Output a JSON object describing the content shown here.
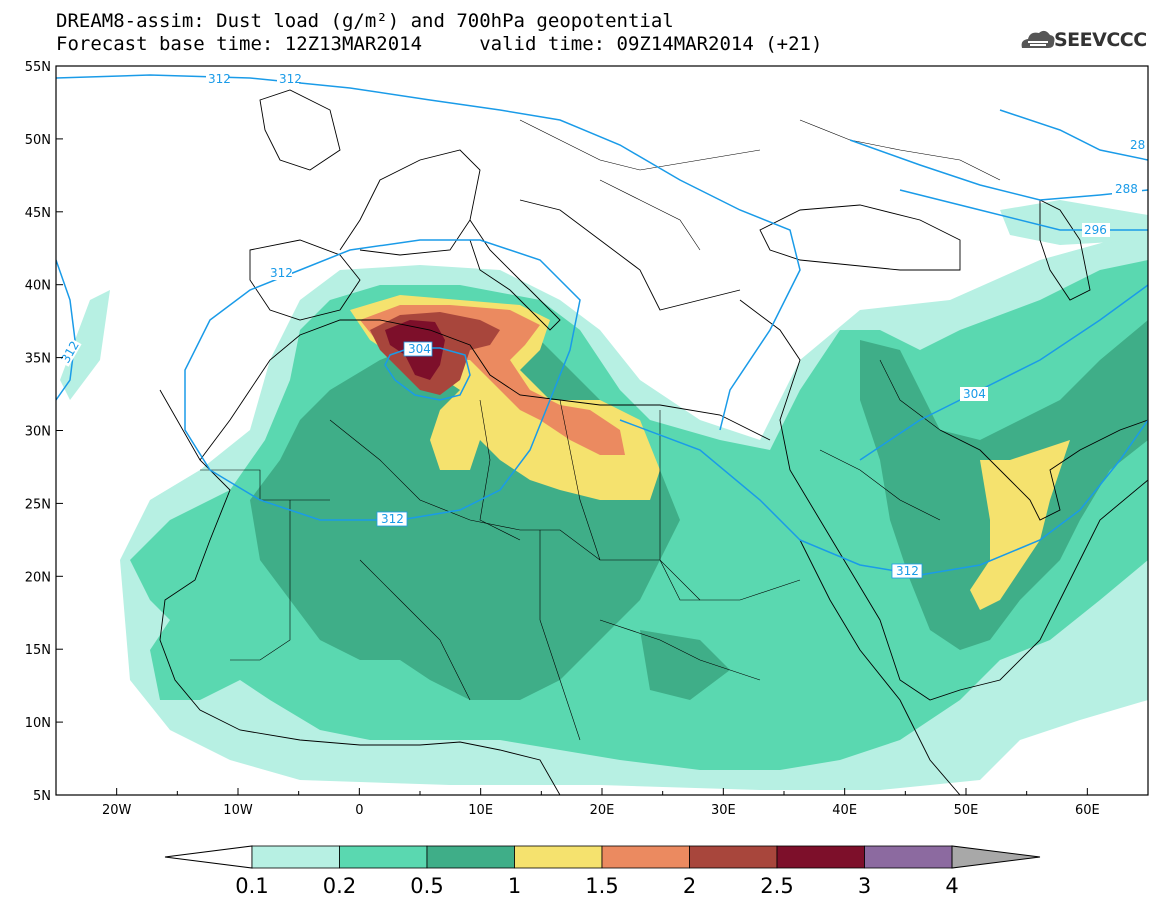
{
  "title": {
    "line1": "DREAM8-assim: Dust load (g/m²) and 700hPa geopotential",
    "line2": "Forecast base time: 12Z13MAR2014     valid time: 09Z14MAR2014 (+21)"
  },
  "logo": {
    "text": "SEEVCCC",
    "icon": "cloud-icon"
  },
  "axes": {
    "lon_ticks": [
      "20W",
      "10W",
      "0",
      "10E",
      "20E",
      "30E",
      "40E",
      "50E",
      "60E"
    ],
    "lat_ticks": [
      "55N",
      "50N",
      "45N",
      "40N",
      "35N",
      "30N",
      "25N",
      "20N",
      "15N",
      "10N",
      "5N"
    ],
    "lon_range": [
      -25,
      65
    ],
    "lat_range": [
      5,
      55
    ]
  },
  "contour_labels": [
    "312",
    "312",
    "312",
    "312",
    "304",
    "312",
    "312",
    "304",
    "288",
    "28",
    "296"
  ],
  "colorbar": {
    "labels": [
      "0.1",
      "0.2",
      "0.5",
      "1",
      "1.5",
      "2",
      "2.5",
      "3",
      "4"
    ],
    "colors": [
      "#ffffff",
      "#b7f0e3",
      "#5ad8b0",
      "#3fae88",
      "#f5e26e",
      "#eb8a60",
      "#a8463c",
      "#7d0f2a",
      "#8c6aa0",
      "#a8a8a8"
    ]
  },
  "colors": {
    "contour": "#1a9be8",
    "coast": "#000000",
    "background": "#ffffff"
  }
}
